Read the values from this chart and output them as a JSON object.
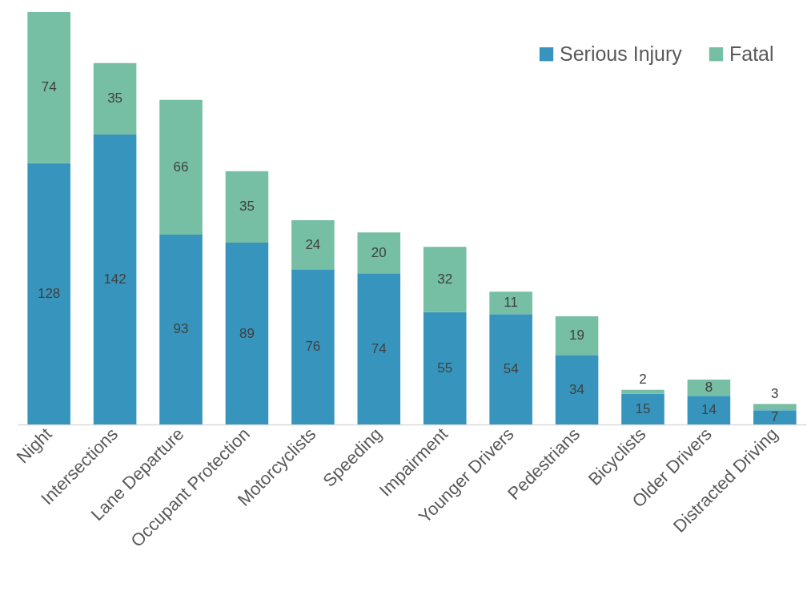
{
  "chart_data": {
    "type": "bar",
    "stacked": true,
    "data_labels": true,
    "legend": "top right",
    "grid": false,
    "categories": [
      "Night",
      "Intersections",
      "Lane Departure",
      "Occupant Protection",
      "Motorcyclists",
      "Speeding",
      "Impairment",
      "Younger Drivers",
      "Pedestrians",
      "Bicyclists",
      "Older Drivers",
      "Distracted Driving"
    ],
    "series": [
      {
        "name": "Serious Injury",
        "color": "#3795bd",
        "values": [
          128,
          142,
          93,
          89,
          76,
          74,
          55,
          54,
          34,
          15,
          14,
          7
        ]
      },
      {
        "name": "Fatal",
        "color": "#76bea4",
        "values": [
          74,
          35,
          66,
          35,
          24,
          20,
          32,
          11,
          19,
          2,
          8,
          3
        ]
      }
    ]
  }
}
